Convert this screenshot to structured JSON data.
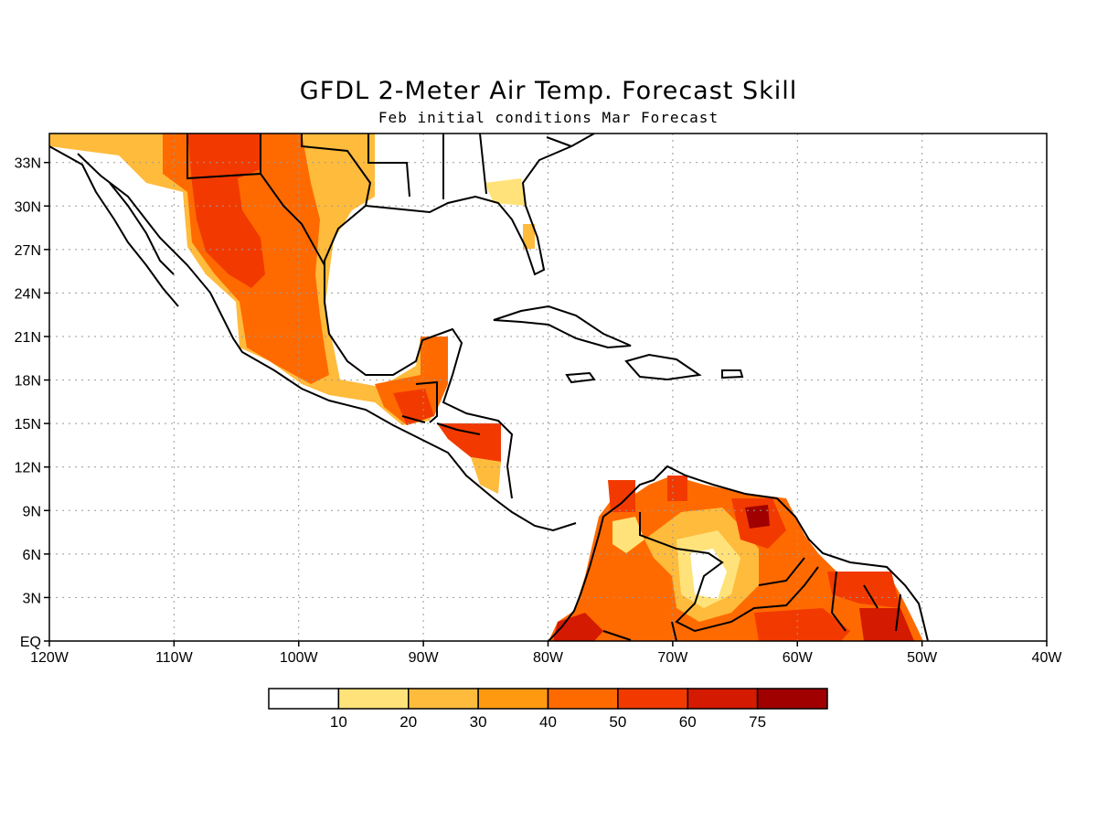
{
  "title": "GFDL 2-Meter Air Temp. Forecast Skill",
  "subtitle": "Feb initial conditions  Mar Forecast",
  "map": {
    "lon_range": [
      -120,
      -40
    ],
    "lat_range": [
      0,
      35
    ],
    "x_ticks": [
      {
        "value": -120,
        "label": "120W"
      },
      {
        "value": -110,
        "label": "110W"
      },
      {
        "value": -100,
        "label": "100W"
      },
      {
        "value": -90,
        "label": "90W"
      },
      {
        "value": -80,
        "label": "80W"
      },
      {
        "value": -70,
        "label": "70W"
      },
      {
        "value": -60,
        "label": "60W"
      },
      {
        "value": -50,
        "label": "50W"
      },
      {
        "value": -40,
        "label": "40W"
      }
    ],
    "y_ticks": [
      {
        "value": 0,
        "label": "EQ"
      },
      {
        "value": 3,
        "label": "3N"
      },
      {
        "value": 6,
        "label": "6N"
      },
      {
        "value": 9,
        "label": "9N"
      },
      {
        "value": 12,
        "label": "12N"
      },
      {
        "value": 15,
        "label": "15N"
      },
      {
        "value": 18,
        "label": "18N"
      },
      {
        "value": 21,
        "label": "21N"
      },
      {
        "value": 24,
        "label": "24N"
      },
      {
        "value": 27,
        "label": "27N"
      },
      {
        "value": 30,
        "label": "30N"
      },
      {
        "value": 33,
        "label": "33N"
      }
    ],
    "grid": "dotted"
  },
  "colorbar": {
    "colors": [
      "#ffffff",
      "#ffe37a",
      "#ffbb3c",
      "#ff9a10",
      "#ff6a00",
      "#f23a00",
      "#d41a00",
      "#a00000"
    ],
    "labels": [
      "10",
      "20",
      "30",
      "40",
      "50",
      "60",
      "75"
    ]
  }
}
